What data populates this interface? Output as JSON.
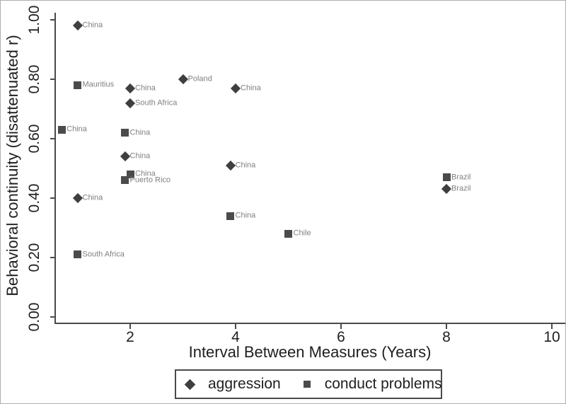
{
  "figure": {
    "background": "#ffffff",
    "frame_color": "#adadad",
    "axis_color": "#4a4a4a",
    "tick_label_color": "#1f1f1f",
    "point_label_color": "#7f7f7f"
  },
  "legend": {
    "items": [
      {
        "label": "aggression",
        "marker": "diamond"
      },
      {
        "label": "conduct problems",
        "marker": "square"
      }
    ]
  },
  "chart_data": {
    "type": "scatter",
    "title": "",
    "xlabel": "Interval Between Measures (Years)",
    "ylabel": "Behavioral continuity (disattenuated r)",
    "xlim": [
      0.577,
      10.255
    ],
    "ylim": [
      -0.0214,
      1.0238
    ],
    "grid": false,
    "legend_position": "bottom",
    "x_ticks": [
      {
        "value": 2,
        "label": "2"
      },
      {
        "value": 4,
        "label": "4"
      },
      {
        "value": 6,
        "label": "6"
      },
      {
        "value": 8,
        "label": "8"
      },
      {
        "value": 10,
        "label": "10"
      }
    ],
    "y_ticks": [
      {
        "value": 0.0,
        "label": "0.00"
      },
      {
        "value": 0.2,
        "label": "0.20"
      },
      {
        "value": 0.4,
        "label": "0.40"
      },
      {
        "value": 0.6,
        "label": "0.60"
      },
      {
        "value": 0.8,
        "label": "0.80"
      },
      {
        "value": 1.0,
        "label": "1.00"
      }
    ],
    "series": [
      {
        "name": "aggression",
        "marker": "diamond",
        "color": "#3f3f3f",
        "points": [
          {
            "x": 1.0,
            "y": 0.98,
            "label": "China"
          },
          {
            "x": 3.0,
            "y": 0.8,
            "label": "Poland"
          },
          {
            "x": 2.0,
            "y": 0.77,
            "label": "China"
          },
          {
            "x": 4.0,
            "y": 0.77,
            "label": "China"
          },
          {
            "x": 2.0,
            "y": 0.72,
            "label": "South Africa"
          },
          {
            "x": 1.9,
            "y": 0.54,
            "label": "China"
          },
          {
            "x": 3.9,
            "y": 0.51,
            "label": "China"
          },
          {
            "x": 8.0,
            "y": 0.43,
            "label": "Brazil"
          },
          {
            "x": 1.0,
            "y": 0.4,
            "label": "China"
          }
        ]
      },
      {
        "name": "conduct problems",
        "marker": "square",
        "color": "#4b4b4b",
        "points": [
          {
            "x": 1.0,
            "y": 0.78,
            "label": "Mauritius"
          },
          {
            "x": 0.7,
            "y": 0.63,
            "label": "China"
          },
          {
            "x": 1.9,
            "y": 0.62,
            "label": "China"
          },
          {
            "x": 2.0,
            "y": 0.48,
            "label": "China"
          },
          {
            "x": 1.9,
            "y": 0.46,
            "label": "Puerto Rico"
          },
          {
            "x": 8.0,
            "y": 0.47,
            "label": "Brazil"
          },
          {
            "x": 3.9,
            "y": 0.34,
            "label": "China"
          },
          {
            "x": 5.0,
            "y": 0.28,
            "label": "Chile"
          },
          {
            "x": 1.0,
            "y": 0.21,
            "label": "South Africa"
          }
        ]
      }
    ]
  }
}
